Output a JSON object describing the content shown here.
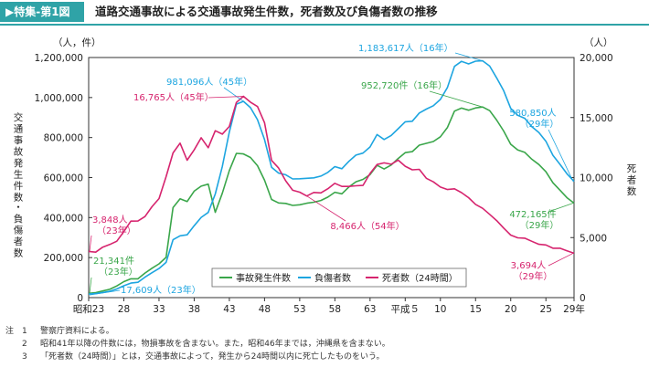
{
  "header": {
    "tag": "▶特集-第1図",
    "title": "道路交通事故による交通事故発生件数，死者数及び負傷者数の推移"
  },
  "chart_data": {
    "type": "line",
    "left_axis": {
      "unit_label": "（人，件）",
      "title": "交通事故発生件数・負傷者数",
      "min": 0,
      "max": 1200000,
      "ticks": [
        "0",
        "200,000",
        "400,000",
        "600,000",
        "800,000",
        "1,000,000",
        "1,200,000"
      ]
    },
    "right_axis": {
      "unit_label": "（人）",
      "title": "死者数",
      "min": 0,
      "max": 20000,
      "ticks": [
        "0",
        "5,000",
        "10,000",
        "15,000",
        "20,000"
      ]
    },
    "x_ticks": [
      {
        "label": "昭和23",
        "year": 1948
      },
      {
        "label": "28",
        "year": 1953
      },
      {
        "label": "33",
        "year": 1958
      },
      {
        "label": "38",
        "year": 1963
      },
      {
        "label": "43",
        "year": 1968
      },
      {
        "label": "48",
        "year": 1973
      },
      {
        "label": "53",
        "year": 1978
      },
      {
        "label": "58",
        "year": 1983
      },
      {
        "label": "63",
        "year": 1988
      },
      {
        "label": "平成５",
        "year": 1993
      },
      {
        "label": "10",
        "year": 1998
      },
      {
        "label": "15",
        "year": 2003
      },
      {
        "label": "20",
        "year": 2008
      },
      {
        "label": "25",
        "year": 2013
      },
      {
        "label": "29年",
        "year": 2017
      }
    ],
    "x_range": [
      1948,
      2017
    ],
    "series": [
      {
        "name": "事故発生件数",
        "axis": "left",
        "color": "#3aa64a",
        "x": [
          1948,
          1949,
          1950,
          1951,
          1952,
          1953,
          1954,
          1955,
          1956,
          1957,
          1958,
          1959,
          1960,
          1961,
          1962,
          1963,
          1964,
          1965,
          1966,
          1967,
          1968,
          1969,
          1970,
          1971,
          1972,
          1973,
          1974,
          1975,
          1976,
          1977,
          1978,
          1979,
          1980,
          1981,
          1982,
          1983,
          1984,
          1985,
          1986,
          1987,
          1988,
          1989,
          1990,
          1991,
          1992,
          1993,
          1994,
          1995,
          1996,
          1997,
          1998,
          1999,
          2000,
          2001,
          2002,
          2003,
          2004,
          2005,
          2006,
          2007,
          2008,
          2009,
          2010,
          2011,
          2012,
          2013,
          2014,
          2015,
          2016,
          2017
        ],
        "y": [
          21341,
          25113,
          33212,
          41423,
          58487,
          80019,
          93869,
          93981,
          122691,
          146833,
          168799,
          201292,
          449917,
          493693,
          479825,
          531966,
          557183,
          567286,
          425944,
          521481,
          635056,
          720880,
          718080,
          700290,
          659283,
          586713,
          490452,
          472938,
          471041,
          460649,
          464037,
          471573,
          476677,
          485578,
          502261,
          526362,
          518642,
          552788,
          579190,
          590723,
          614481,
          661363,
          643097,
          662388,
          695345,
          724675,
          729461,
          761794,
          771085,
          780399,
          803882,
          850371,
          931950,
          947253,
          936950,
          947993,
          952720,
          934346,
          887257,
          832704,
          766394,
          737637,
          725924,
          691937,
          665157,
          629033,
          573842,
          536899,
          499201,
          472165
        ]
      },
      {
        "name": "負傷者数",
        "axis": "left",
        "color": "#1da5e0",
        "x": [
          1948,
          1949,
          1950,
          1951,
          1952,
          1953,
          1954,
          1955,
          1956,
          1957,
          1958,
          1959,
          1960,
          1961,
          1962,
          1963,
          1964,
          1965,
          1966,
          1967,
          1968,
          1969,
          1970,
          1971,
          1972,
          1973,
          1974,
          1975,
          1976,
          1977,
          1978,
          1979,
          1980,
          1981,
          1982,
          1983,
          1984,
          1985,
          1986,
          1987,
          1988,
          1989,
          1990,
          1991,
          1992,
          1993,
          1994,
          1995,
          1996,
          1997,
          1998,
          1999,
          2000,
          2001,
          2002,
          2003,
          2004,
          2005,
          2006,
          2007,
          2008,
          2009,
          2010,
          2011,
          2012,
          2013,
          2014,
          2015,
          2016,
          2017
        ],
        "y": [
          17609,
          20242,
          25450,
          31274,
          43321,
          59280,
          72390,
          76501,
          102072,
          124530,
          145432,
          175951,
          289156,
          308697,
          313813,
          359089,
          401117,
          425666,
          517775,
          655377,
          828071,
          967000,
          981096,
          949689,
          889198,
          789948,
          651420,
          622467,
          613957,
          593211,
          594116,
          596282,
          598719,
          607346,
          626192,
          654822,
          644321,
          681346,
          712330,
          722179,
          752845,
          814832,
          790295,
          810245,
          844003,
          878633,
          881723,
          922677,
          942204,
          958925,
          990675,
          1050397,
          1155707,
          1181039,
          1168029,
          1181681,
          1183617,
          1157113,
          1098199,
          1034445,
          945703,
          911215,
          896297,
          854613,
          825392,
          781494,
          711374,
          666023,
          618853,
          580850
        ]
      },
      {
        "name": "死者数（24時間）",
        "axis": "right",
        "color": "#d6246e",
        "x": [
          1948,
          1949,
          1950,
          1951,
          1952,
          1953,
          1954,
          1955,
          1956,
          1957,
          1958,
          1959,
          1960,
          1961,
          1962,
          1963,
          1964,
          1965,
          1966,
          1967,
          1968,
          1969,
          1970,
          1971,
          1972,
          1973,
          1974,
          1975,
          1976,
          1977,
          1978,
          1979,
          1980,
          1981,
          1982,
          1983,
          1984,
          1985,
          1986,
          1987,
          1988,
          1989,
          1990,
          1991,
          1992,
          1993,
          1994,
          1995,
          1996,
          1997,
          1998,
          1999,
          2000,
          2001,
          2002,
          2003,
          2004,
          2005,
          2006,
          2007,
          2008,
          2009,
          2010,
          2011,
          2012,
          2013,
          2014,
          2015,
          2016,
          2017
        ],
        "y": [
          3848,
          3790,
          4202,
          4429,
          4696,
          5506,
          6374,
          6379,
          6751,
          7575,
          8248,
          10079,
          12055,
          12865,
          11445,
          12301,
          13318,
          12484,
          13904,
          13618,
          14256,
          16257,
          16765,
          16278,
          15918,
          14574,
          11432,
          10792,
          9734,
          8945,
          8783,
          8466,
          8760,
          8719,
          9073,
          9520,
          9262,
          9261,
          9317,
          9347,
          10344,
          11086,
          11227,
          11109,
          11451,
          10942,
          10649,
          10684,
          9942,
          9640,
          9211,
          9006,
          9066,
          8747,
          8326,
          7768,
          7436,
          6937,
          6415,
          5796,
          5209,
          4979,
          4948,
          4691,
          4438,
          4388,
          4113,
          4117,
          3904,
          3694
        ]
      }
    ],
    "legend": {
      "placement": "bottom-center",
      "entries": [
        "事故発生件数",
        "負傷者数",
        "死者数（24時間）"
      ]
    },
    "annotations": {
      "injury_peak_45": "981,096人（45年）",
      "injury_peak_16": "1,183,617人（16年）",
      "injury_29_a": "580,850人",
      "injury_29_b": "（29年）",
      "injury_23": "17,609人（23年）",
      "death_peak_45": "16,765人（45年）",
      "death_23_a": "3,848人",
      "death_23_b": "（23年）",
      "death_54": "8,466人（54年）",
      "death_29_a": "3,694人",
      "death_29_b": "（29年）",
      "acc_16": "952,720件（16年）",
      "acc_23_a": "21,341件",
      "acc_23_b": "（23年）",
      "acc_29_a": "472,165件",
      "acc_29_b": "（29年）"
    }
  },
  "notes": [
    {
      "k": "注",
      "n": "1",
      "text": "警察庁資料による。"
    },
    {
      "k": "",
      "n": "2",
      "text": "昭和41年以降の件数には，物損事故を含まない。また，昭和46年までは，沖縄県を含まない。"
    },
    {
      "k": "",
      "n": "3",
      "text": "「死者数（24時間）」とは，交通事故によって，発生から24時間以内に死亡したものをいう。"
    }
  ]
}
